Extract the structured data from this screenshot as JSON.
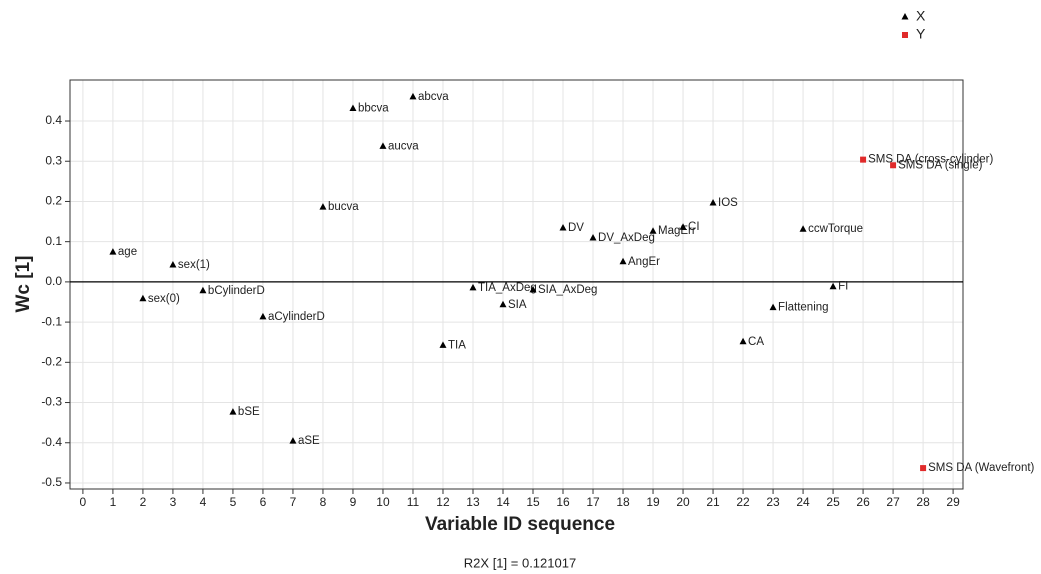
{
  "chart_data": {
    "type": "scatter",
    "xlabel": "Variable ID sequence",
    "ylabel": "Wc [1]",
    "footnote": "R2X [1] = 0.121017",
    "xlim": [
      -0.43,
      29.33
    ],
    "ylim": [
      -0.515,
      0.502
    ],
    "xticks": [
      0,
      1,
      2,
      3,
      4,
      5,
      6,
      7,
      8,
      9,
      10,
      11,
      12,
      13,
      14,
      15,
      16,
      17,
      18,
      19,
      20,
      21,
      22,
      23,
      24,
      25,
      26,
      27,
      28,
      29
    ],
    "yticks": [
      0.4,
      0.3,
      0.2,
      0.1,
      {
        "value": 0,
        "label": "0.0"
      },
      -0.1,
      -0.2,
      -0.3,
      -0.4,
      -0.5
    ],
    "grid": true,
    "zero_line": true,
    "legend": "top-right",
    "series": [
      {
        "name": "X",
        "color": "#000000",
        "marker": "triangle",
        "x": [
          1,
          2,
          3,
          4,
          5,
          6,
          7,
          8,
          9,
          10,
          11,
          12,
          13,
          14,
          15,
          16,
          17,
          18,
          19,
          20,
          21,
          22,
          23,
          24,
          25
        ],
        "values": [
          0.074,
          -0.042,
          0.042,
          -0.022,
          -0.324,
          -0.087,
          -0.396,
          0.186,
          0.431,
          0.337,
          0.46,
          -0.158,
          -0.015,
          -0.057,
          -0.02,
          0.134,
          0.109,
          0.05,
          0.126,
          0.136,
          0.196,
          -0.149,
          -0.064,
          0.131,
          -0.012
        ],
        "labels": [
          "age",
          "sex(0)",
          "sex(1)",
          "bCylinderD",
          "bSE",
          "aCylinderD",
          "aSE",
          "bucva",
          "bbcva",
          "aucva",
          "abcva",
          "TIA",
          "TIA_AxDeg",
          "SIA",
          "SIA_AxDeg",
          "DV",
          "DV_AxDeg",
          "AngEr",
          "MagErr",
          "CI",
          "IOS",
          "CA",
          "Flattening",
          "ccwTorque",
          "FI"
        ]
      },
      {
        "name": "Y",
        "color": "#e02a2a",
        "marker": "square",
        "x": [
          26,
          27,
          28
        ],
        "values": [
          0.304,
          0.29,
          -0.463
        ],
        "labels": [
          "SMS DA (cross-cylinder)",
          "SMS DA (single)",
          "SMS DA (Wavefront)"
        ]
      }
    ]
  }
}
